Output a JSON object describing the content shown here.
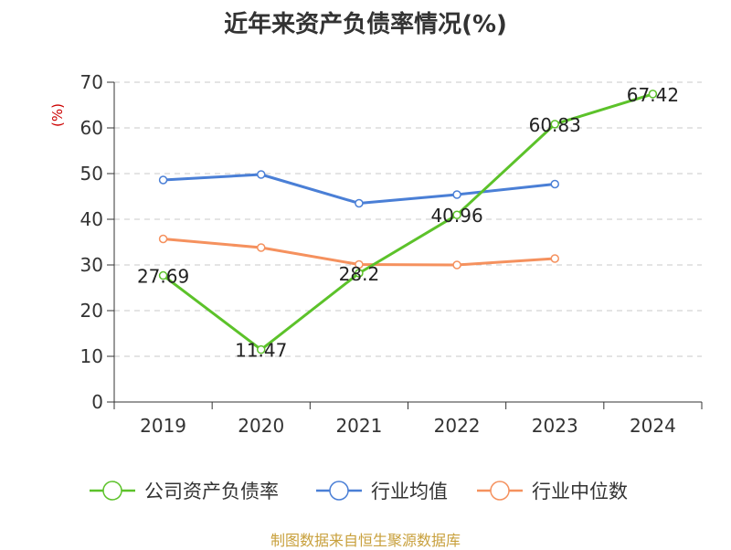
{
  "colors": {
    "company": "#5cc22a",
    "avg": "#4a7fd6",
    "median": "#f5915e",
    "axis": "#333333",
    "grid": "#c8c8c8",
    "ylabel": "#cc0000",
    "source": "#c8a03c"
  },
  "chart_data": {
    "type": "line",
    "title": "近年来资产负债率情况(%)",
    "ylabel": "(%)",
    "xlabel": "",
    "categories": [
      "2019",
      "2020",
      "2021",
      "2022",
      "2023",
      "2024"
    ],
    "ylim": [
      0,
      70
    ],
    "yticks": [
      0,
      10,
      20,
      30,
      40,
      50,
      60,
      70
    ],
    "grid": true,
    "legend_position": "bottom",
    "series": [
      {
        "name": "公司资产负债率",
        "color": "#5cc22a",
        "values": [
          27.69,
          11.47,
          28.2,
          40.96,
          60.83,
          67.42
        ],
        "labels": [
          "27.69",
          "11.47",
          "28.2",
          "40.96",
          "60.83",
          "67.42"
        ]
      },
      {
        "name": "行业均值",
        "color": "#4a7fd6",
        "values": [
          48.6,
          49.8,
          43.5,
          45.4,
          47.7,
          null
        ]
      },
      {
        "name": "行业中位数",
        "color": "#f5915e",
        "values": [
          35.7,
          33.8,
          30.1,
          30.0,
          31.4,
          null
        ]
      }
    ]
  },
  "footer": {
    "source": "制图数据来自恒生聚源数据库"
  }
}
